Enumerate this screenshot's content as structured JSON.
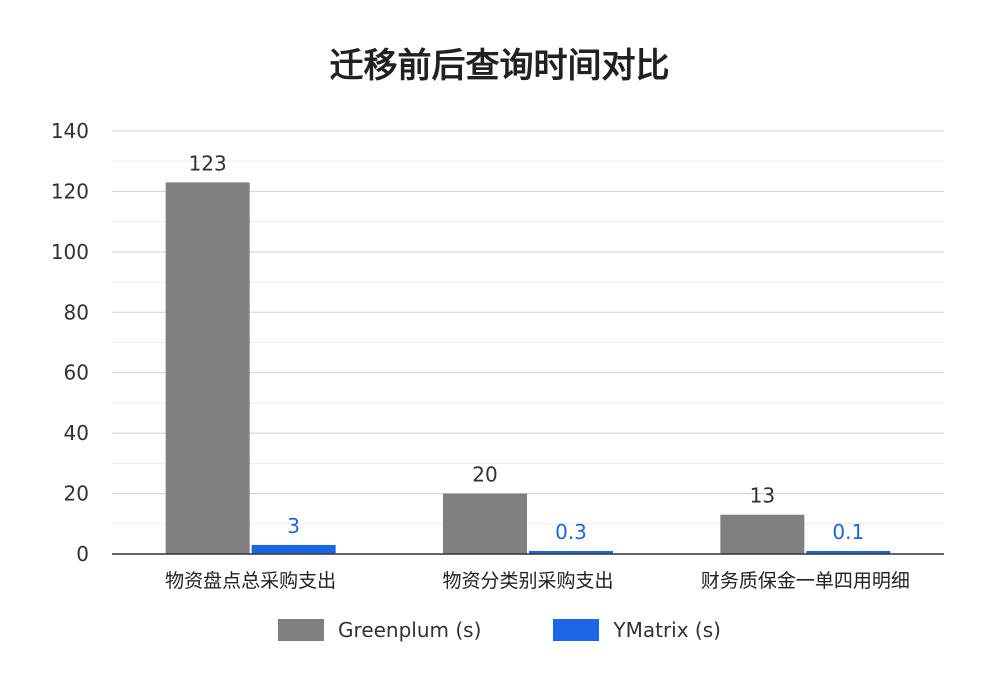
{
  "chart_data": {
    "type": "bar",
    "title": "迁移前后查询时间对比",
    "categories": [
      "物资盘点总采购支出",
      "物资分类别采购支出",
      "财务质保金一单四用明细"
    ],
    "series": [
      {
        "name": "Greenplum (s)",
        "values": [
          123,
          20,
          13
        ],
        "labels": [
          "123",
          "20",
          "13"
        ],
        "color": "#808080",
        "label_color": "#303134"
      },
      {
        "name": "YMatrix (s)",
        "values": [
          3,
          0.3,
          0.1
        ],
        "labels": [
          "3",
          "0.3",
          "0.1"
        ],
        "color": "#1a66e6",
        "label_color": "#1a66e6"
      }
    ],
    "ylim": [
      0,
      140
    ],
    "yticks": [
      "0",
      "20",
      "40",
      "60",
      "80",
      "100",
      "120",
      "140"
    ],
    "grid": true,
    "legend_position": "bottom"
  }
}
